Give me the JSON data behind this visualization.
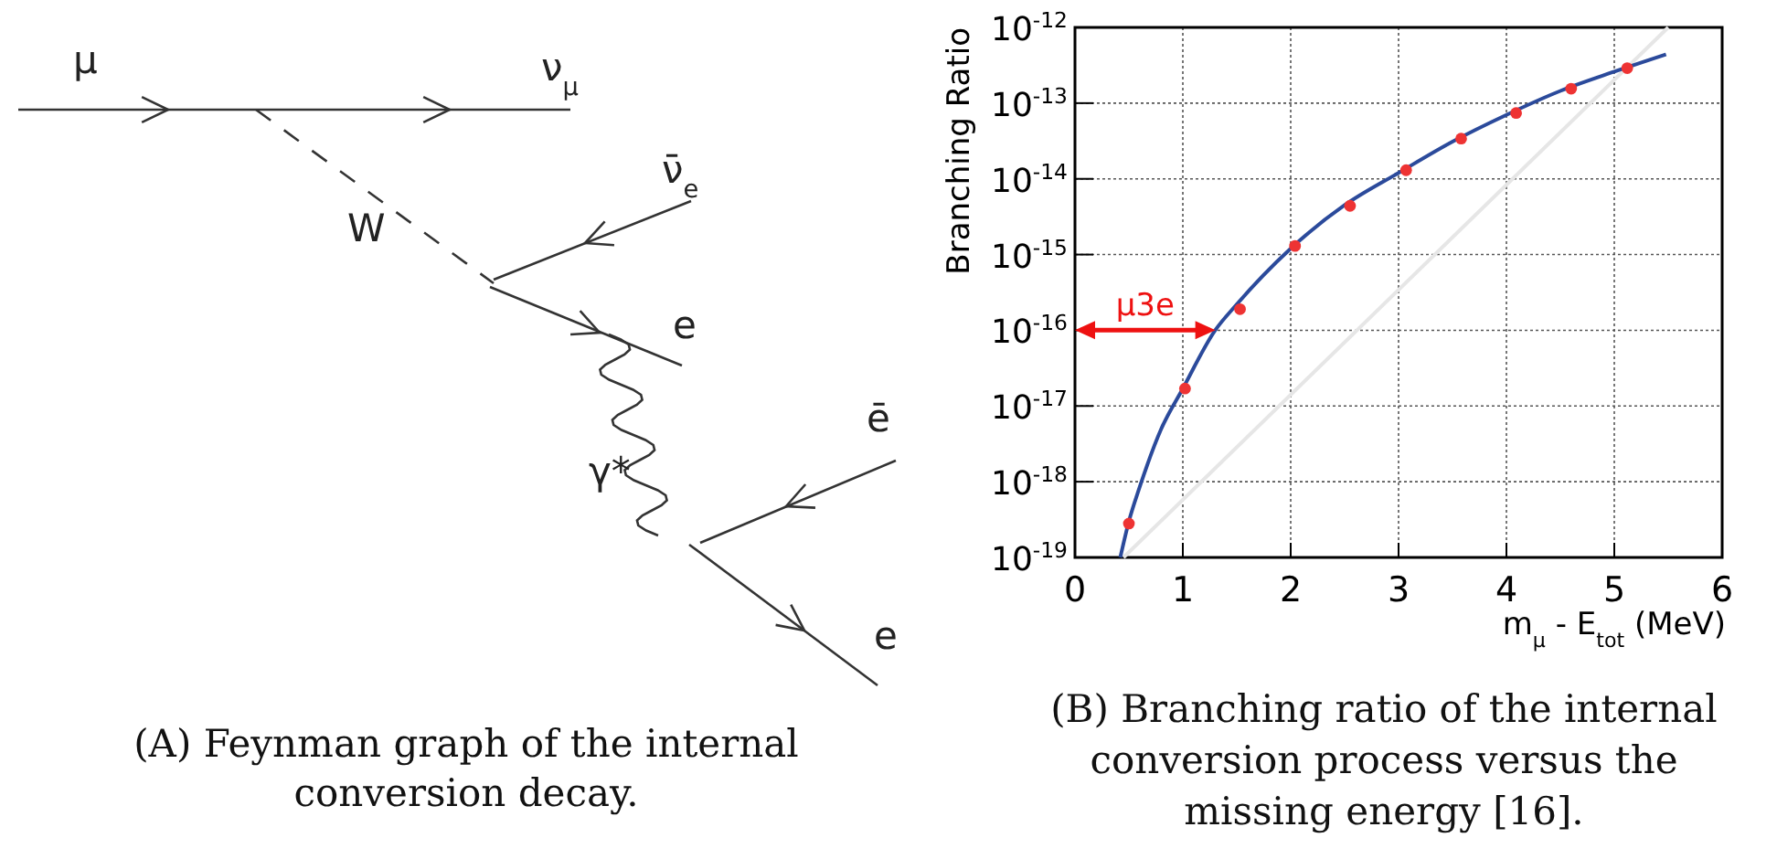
{
  "chart_data": [
    {
      "type": "other",
      "annotations": [
        "μ",
        "ν$_{μ}$",
        "ν̄$_{e}$",
        "W",
        "e",
        "γ*",
        "ē",
        "e",
        "(A) Feynman graph of the internal conversion decay."
      ]
    },
    {
      "type": "line",
      "xlabel": "m$_{μ}$ - E$_{tot}$ (MeV)",
      "ylabel": "Branching Ratio",
      "log": "y",
      "grid": true,
      "xlim": [
        0,
        6
      ],
      "xticks": [
        0,
        1,
        2,
        3,
        4,
        5,
        6
      ],
      "ylim": [
        1e-19,
        1e-12
      ],
      "yticks": [
        {
          "value": 1e-19,
          "label": "10$^{-19}$"
        },
        {
          "value": 1e-18,
          "label": "10$^{-18}$"
        },
        {
          "value": 1e-17,
          "label": "10$^{-17}$"
        },
        {
          "value": 1e-16,
          "label": "10$^{-16}$"
        },
        {
          "value": 1e-15,
          "label": "10$^{-15}$"
        },
        {
          "value": 1e-14,
          "label": "10$^{-14}$"
        },
        {
          "value": 1e-13,
          "label": "10$^{-13}$"
        },
        {
          "value": 1e-12,
          "label": "10$^{-12}$"
        }
      ],
      "series": [
        {
          "type": "line",
          "color": "#e6e6e6",
          "marker": "none",
          "x": [
            0.45,
            5.5
          ],
          "values": [
            1e-19,
            1e-12
          ]
        },
        {
          "type": "line",
          "color": "#2b4a9b",
          "marker": "none",
          "x": [
            0.42,
            0.5,
            0.6,
            0.8,
            1.0,
            1.3,
            1.5,
            2.0,
            2.5,
            3.0,
            3.5,
            4.0,
            4.5,
            5.0,
            5.48
          ],
          "values": [
            1e-19,
            3e-19,
            8.5e-19,
            5e-18,
            1.7e-17,
            1e-16,
            2.2e-16,
            1.2e-15,
            4.5e-15,
            1.2e-14,
            3.1e-14,
            7e-14,
            1.45e-13,
            2.6e-13,
            4.4e-13
          ]
        },
        {
          "type": "scatter",
          "color": "#ee3333",
          "marker": "circle",
          "x": [
            0.5,
            1.02,
            1.53,
            2.04,
            2.55,
            3.07,
            3.58,
            4.09,
            4.6,
            5.12
          ],
          "values": [
            2.8e-19,
            1.7e-17,
            1.9e-16,
            1.3e-15,
            4.4e-15,
            1.3e-14,
            3.4e-14,
            7.4e-14,
            1.55e-13,
            2.9e-13
          ]
        }
      ],
      "annotations": [
        "μ3e",
        "(B) Branching ratio of the internal conversion process versus the missing energy [16]."
      ]
    }
  ]
}
